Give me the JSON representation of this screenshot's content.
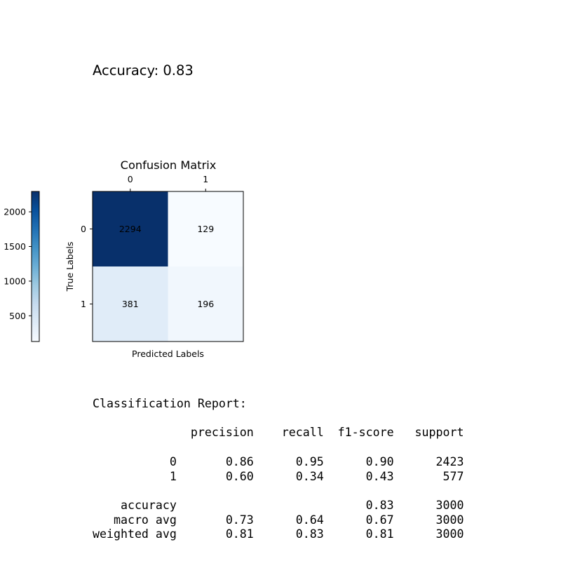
{
  "accuracy_text": "Accuracy: 0.83",
  "chart_data": {
    "type": "heatmap",
    "title": "Confusion Matrix",
    "xlabel": "Predicted Labels",
    "ylabel": "True Labels",
    "x_categories": [
      "0",
      "1"
    ],
    "y_categories": [
      "0",
      "1"
    ],
    "values": [
      [
        2294,
        129
      ],
      [
        381,
        196
      ]
    ],
    "colormap": "Blues",
    "colorbar": {
      "ticks": [
        500,
        1000,
        1500,
        2000
      ],
      "vmin": 129,
      "vmax": 2294
    }
  },
  "report": {
    "title": "Classification Report:",
    "columns": [
      "precision",
      "recall",
      "f1-score",
      "support"
    ],
    "rows": [
      {
        "label": "0",
        "values": [
          "0.86",
          "0.95",
          "0.90",
          "2423"
        ]
      },
      {
        "label": "1",
        "values": [
          "0.60",
          "0.34",
          "0.43",
          "577"
        ]
      },
      {
        "label": "accuracy",
        "values": [
          "",
          "",
          "0.83",
          "3000"
        ]
      },
      {
        "label": "macro avg",
        "values": [
          "0.73",
          "0.64",
          "0.67",
          "3000"
        ]
      },
      {
        "label": "weighted avg",
        "values": [
          "0.81",
          "0.83",
          "0.81",
          "3000"
        ]
      }
    ]
  }
}
